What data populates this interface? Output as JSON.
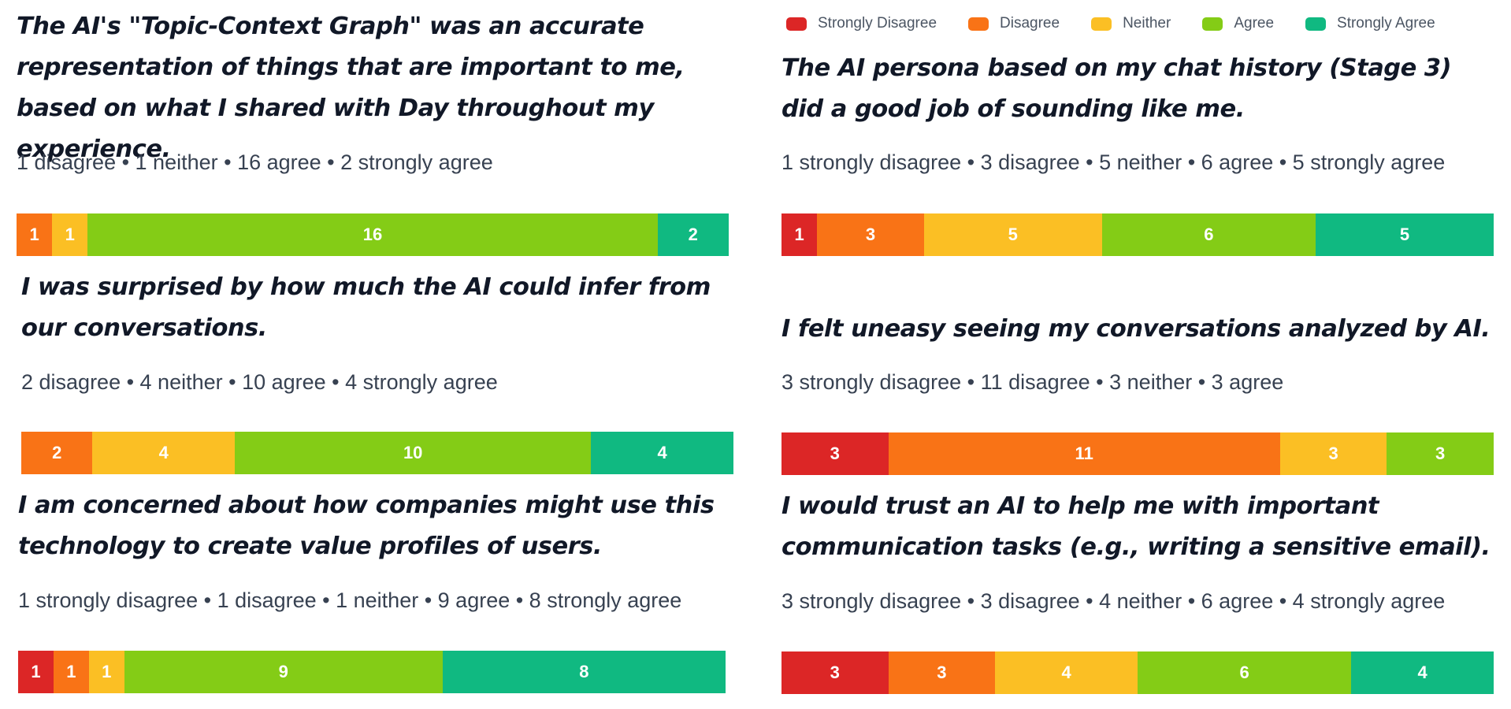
{
  "colors": {
    "strongly_disagree": "#dc2626",
    "disagree": "#f97316",
    "neither": "#fbbf24",
    "agree": "#84cc16",
    "strongly_agree": "#10b981"
  },
  "legend": [
    {
      "label": "Strongly Disagree",
      "key": "strongly_disagree"
    },
    {
      "label": "Disagree",
      "key": "disagree"
    },
    {
      "label": "Neither",
      "key": "neither"
    },
    {
      "label": "Agree",
      "key": "agree"
    },
    {
      "label": "Strongly Agree",
      "key": "strongly_agree"
    }
  ],
  "chart_data": [
    {
      "type": "bar",
      "title": "The AI's \"Topic-Context Graph\" was an accurate representation of things that are important to me, based on what I shared with Day throughout my experience.",
      "summary": "1 disagree • 1 neither • 16 agree • 2 strongly agree",
      "categories": [
        "Strongly Disagree",
        "Disagree",
        "Neither",
        "Agree",
        "Strongly Agree"
      ],
      "values": [
        0,
        1,
        1,
        16,
        2
      ]
    },
    {
      "type": "bar",
      "title": "The AI persona based on my chat history (Stage 3) did a good job of sounding like me.",
      "summary": "1 strongly disagree • 3 disagree • 5 neither • 6 agree • 5 strongly agree",
      "categories": [
        "Strongly Disagree",
        "Disagree",
        "Neither",
        "Agree",
        "Strongly Agree"
      ],
      "values": [
        1,
        3,
        5,
        6,
        5
      ]
    },
    {
      "type": "bar",
      "title": "I was surprised by how much the AI could infer from our conversations.",
      "summary": "2 disagree • 4 neither • 10 agree • 4 strongly agree",
      "categories": [
        "Strongly Disagree",
        "Disagree",
        "Neither",
        "Agree",
        "Strongly Agree"
      ],
      "values": [
        0,
        2,
        4,
        10,
        4
      ]
    },
    {
      "type": "bar",
      "title": "I felt uneasy seeing my conversations analyzed by AI.",
      "summary": "3 strongly disagree • 11 disagree • 3 neither • 3 agree",
      "categories": [
        "Strongly Disagree",
        "Disagree",
        "Neither",
        "Agree",
        "Strongly Agree"
      ],
      "values": [
        3,
        11,
        3,
        3,
        0
      ]
    },
    {
      "type": "bar",
      "title": "I am concerned about how companies might use this technology to create value profiles of users.",
      "summary": "1 strongly disagree • 1 disagree • 1 neither • 9 agree • 8 strongly agree",
      "categories": [
        "Strongly Disagree",
        "Disagree",
        "Neither",
        "Agree",
        "Strongly Agree"
      ],
      "values": [
        1,
        1,
        1,
        9,
        8
      ]
    },
    {
      "type": "bar",
      "title": "I would trust an AI to help me with important communication tasks (e.g., writing a sensitive email).",
      "summary": "3 strongly disagree • 3 disagree • 4 neither • 6 agree • 4 strongly agree",
      "categories": [
        "Strongly Disagree",
        "Disagree",
        "Neither",
        "Agree",
        "Strongly Agree"
      ],
      "values": [
        3,
        3,
        4,
        6,
        4
      ]
    }
  ]
}
